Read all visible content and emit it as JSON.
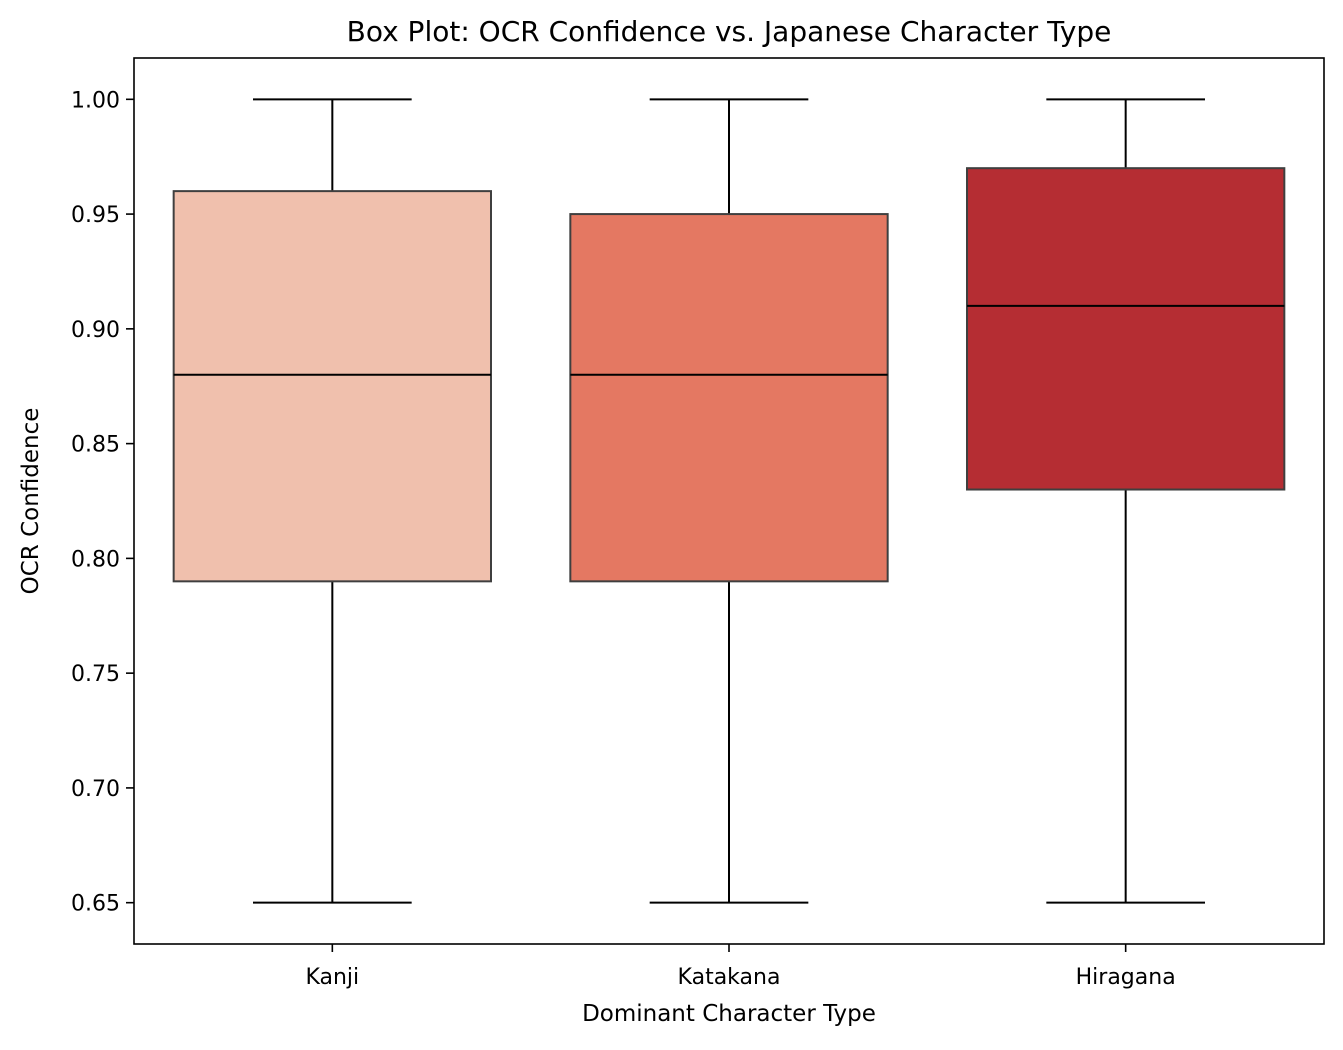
{
  "chart_data": {
    "type": "box",
    "title": "Box Plot: OCR Confidence vs. Japanese Character Type",
    "xlabel": "Dominant Character Type",
    "ylabel": "OCR Confidence",
    "ylim": [
      0.632,
      1.018
    ],
    "yticks": [
      "0.65",
      "0.70",
      "0.75",
      "0.80",
      "0.85",
      "0.90",
      "0.95",
      "1.00"
    ],
    "categories": [
      "Kanji",
      "Katakana",
      "Hiragana"
    ],
    "boxes": [
      {
        "category": "Kanji",
        "whisker_low": 0.65,
        "q1": 0.79,
        "median": 0.88,
        "q3": 0.96,
        "whisker_high": 1.0,
        "color": "#f0c0ad"
      },
      {
        "category": "Katakana",
        "whisker_low": 0.65,
        "q1": 0.79,
        "median": 0.88,
        "q3": 0.95,
        "whisker_high": 1.0,
        "color": "#e47862"
      },
      {
        "category": "Hiragana",
        "whisker_low": 0.65,
        "q1": 0.83,
        "median": 0.91,
        "q3": 0.97,
        "whisker_high": 1.0,
        "color": "#b52d33"
      }
    ],
    "grid": false,
    "legend": "none",
    "box_edge_color": "#3f3f3f"
  }
}
